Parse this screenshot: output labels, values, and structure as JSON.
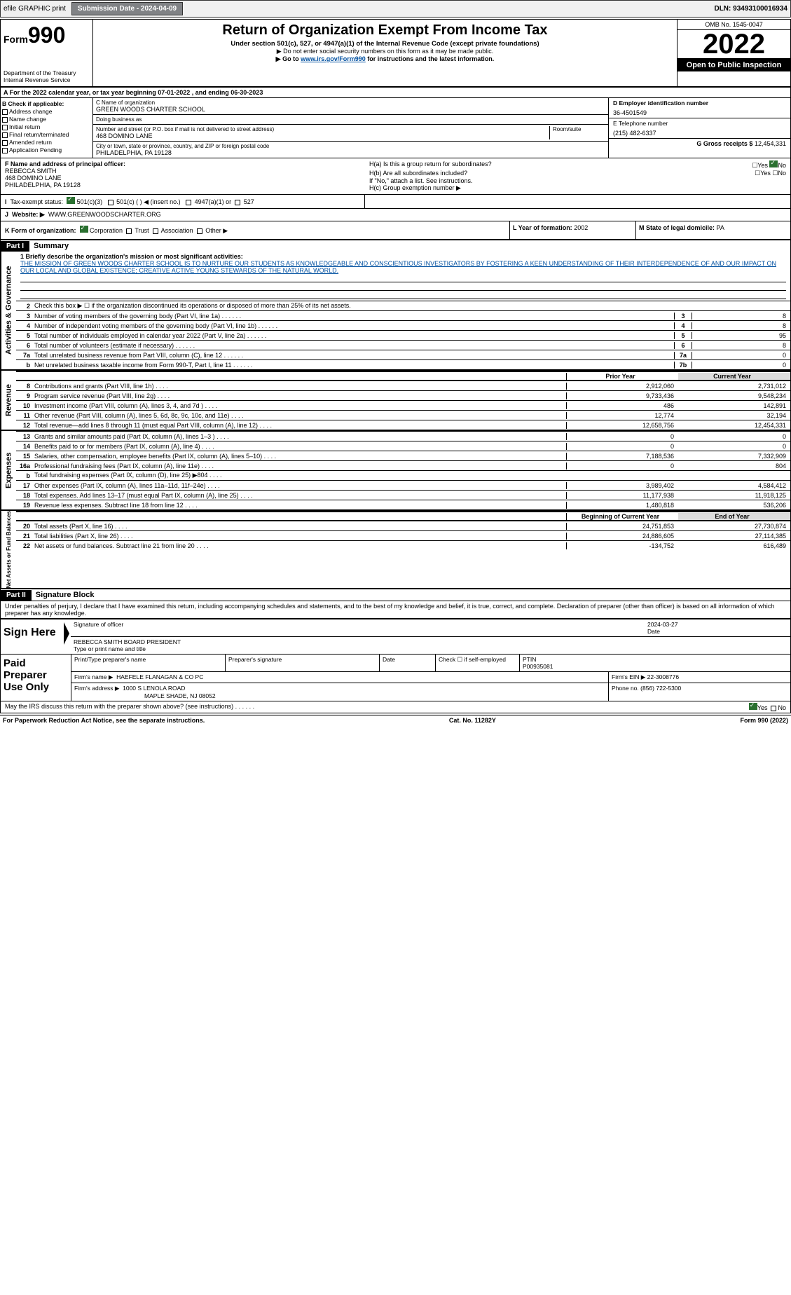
{
  "topbar": {
    "efile": "efile GRAPHIC print",
    "subdate_label": "Submission Date - 2024-04-09",
    "dln": "DLN: 93493100016934"
  },
  "header": {
    "form_label": "Form",
    "form_num": "990",
    "dept": "Department of the Treasury\nInternal Revenue Service",
    "title": "Return of Organization Exempt From Income Tax",
    "sub1": "Under section 501(c), 527, or 4947(a)(1) of the Internal Revenue Code (except private foundations)",
    "sub2": "▶ Do not enter social security numbers on this form as it may be made public.",
    "sub3_pre": "▶ Go to ",
    "sub3_link": "www.irs.gov/Form990",
    "sub3_post": " for instructions and the latest information.",
    "omb": "OMB No. 1545-0047",
    "year": "2022",
    "open": "Open to Public Inspection"
  },
  "rowA": "A For the 2022 calendar year, or tax year beginning 07-01-2022    , and ending 06-30-2023",
  "colB": {
    "hdr": "B Check if applicable:",
    "items": [
      "Address change",
      "Name change",
      "Initial return",
      "Final return/terminated",
      "Amended return",
      "Application Pending"
    ]
  },
  "colC": {
    "name_lbl": "C Name of organization",
    "name": "GREEN WOODS CHARTER SCHOOL",
    "dba_lbl": "Doing business as",
    "dba": "",
    "street_lbl": "Number and street (or P.O. box if mail is not delivered to street address)",
    "room_lbl": "Room/suite",
    "street": "468 DOMINO LANE",
    "city_lbl": "City or town, state or province, country, and ZIP or foreign postal code",
    "city": "PHILADELPHIA, PA  19128"
  },
  "colD": {
    "ein_lbl": "D Employer identification number",
    "ein": "36-4501549",
    "tel_lbl": "E Telephone number",
    "tel": "(215) 482-6337",
    "gross_lbl": "G Gross receipts $",
    "gross": "12,454,331"
  },
  "rowF": {
    "lbl": "F  Name and address of principal officer:",
    "name": "REBECCA SMITH",
    "addr1": "468 DOMINO LANE",
    "addr2": "PHILADELPHIA, PA  19128"
  },
  "rowH": {
    "ha": "H(a)  Is this a group return for subordinates?",
    "hb": "H(b)  Are all subordinates included?",
    "hb2": "If \"No,\" attach a list. See instructions.",
    "hc": "H(c)  Group exemption number ▶",
    "yes": "Yes",
    "no": "No"
  },
  "rowI": {
    "lbl": "Tax-exempt status:",
    "opt1": "501(c)(3)",
    "opt2": "501(c) (   ) ◀ (insert no.)",
    "opt3": "4947(a)(1) or",
    "opt4": "527"
  },
  "rowJ": {
    "lbl": "Website: ▶",
    "val": "WWW.GREENWOODSCHARTER.ORG"
  },
  "rowK": {
    "lbl": "K Form of organization:",
    "corp": "Corporation",
    "trust": "Trust",
    "assoc": "Association",
    "other": "Other ▶"
  },
  "rowL": {
    "lbl": "L Year of formation:",
    "val": "2002"
  },
  "rowM": {
    "lbl": "M State of legal domicile:",
    "val": "PA"
  },
  "part1": {
    "hdr": "Part I",
    "title": "Summary"
  },
  "mission": {
    "lbl": "1  Briefly describe the organization's mission or most significant activities:",
    "text": "THE MISSION OF GREEN WOODS CHARTER SCHOOL IS TO NURTURE OUR STUDENTS AS KNOWLEDGEABLE AND CONSCIENTIOUS INVESTIGATORS BY FOSTERING A KEEN UNDERSTANDING OF THEIR INTERDEPENDENCE OF AND OUR IMPACT ON OUR LOCAL AND GLOBAL EXISTENCE; CREATIVE ACTIVE YOUNG STEWARDS OF THE NATURAL WORLD."
  },
  "sidebar": {
    "s1": "Activities & Governance",
    "s2": "Revenue",
    "s3": "Expenses",
    "s4": "Net Assets or Fund Balances"
  },
  "lines_ag": [
    {
      "n": "2",
      "t": "Check this box ▶ ☐  if the organization discontinued its operations or disposed of more than 25% of its net assets.",
      "box": "",
      "v": ""
    },
    {
      "n": "3",
      "t": "Number of voting members of the governing body (Part VI, line 1a)",
      "box": "3",
      "v": "8"
    },
    {
      "n": "4",
      "t": "Number of independent voting members of the governing body (Part VI, line 1b)",
      "box": "4",
      "v": "8"
    },
    {
      "n": "5",
      "t": "Total number of individuals employed in calendar year 2022 (Part V, line 2a)",
      "box": "5",
      "v": "95"
    },
    {
      "n": "6",
      "t": "Total number of volunteers (estimate if necessary)",
      "box": "6",
      "v": "8"
    },
    {
      "n": "7a",
      "t": "Total unrelated business revenue from Part VIII, column (C), line 12",
      "box": "7a",
      "v": "0"
    },
    {
      "n": "b",
      "t": "Net unrelated business taxable income from Form 990-T, Part I, line 11",
      "box": "7b",
      "v": "0"
    }
  ],
  "colhdrs": {
    "py": "Prior Year",
    "cy": "Current Year",
    "bcy": "Beginning of Current Year",
    "ey": "End of Year"
  },
  "lines_rev": [
    {
      "n": "8",
      "t": "Contributions and grants (Part VIII, line 1h)",
      "v1": "2,912,060",
      "v2": "2,731,012"
    },
    {
      "n": "9",
      "t": "Program service revenue (Part VIII, line 2g)",
      "v1": "9,733,436",
      "v2": "9,548,234"
    },
    {
      "n": "10",
      "t": "Investment income (Part VIII, column (A), lines 3, 4, and 7d )",
      "v1": "486",
      "v2": "142,891"
    },
    {
      "n": "11",
      "t": "Other revenue (Part VIII, column (A), lines 5, 6d, 8c, 9c, 10c, and 11e)",
      "v1": "12,774",
      "v2": "32,194"
    },
    {
      "n": "12",
      "t": "Total revenue—add lines 8 through 11 (must equal Part VIII, column (A), line 12)",
      "v1": "12,658,756",
      "v2": "12,454,331"
    }
  ],
  "lines_exp": [
    {
      "n": "13",
      "t": "Grants and similar amounts paid (Part IX, column (A), lines 1–3 )",
      "v1": "0",
      "v2": "0"
    },
    {
      "n": "14",
      "t": "Benefits paid to or for members (Part IX, column (A), line 4)",
      "v1": "0",
      "v2": "0"
    },
    {
      "n": "15",
      "t": "Salaries, other compensation, employee benefits (Part IX, column (A), lines 5–10)",
      "v1": "7,188,536",
      "v2": "7,332,909"
    },
    {
      "n": "16a",
      "t": "Professional fundraising fees (Part IX, column (A), line 11e)",
      "v1": "0",
      "v2": "804"
    },
    {
      "n": "b",
      "t": "Total fundraising expenses (Part IX, column (D), line 25) ▶804",
      "v1": "",
      "v2": "",
      "grey": true
    },
    {
      "n": "17",
      "t": "Other expenses (Part IX, column (A), lines 11a–11d, 11f–24e)",
      "v1": "3,989,402",
      "v2": "4,584,412"
    },
    {
      "n": "18",
      "t": "Total expenses. Add lines 13–17 (must equal Part IX, column (A), line 25)",
      "v1": "11,177,938",
      "v2": "11,918,125"
    },
    {
      "n": "19",
      "t": "Revenue less expenses. Subtract line 18 from line 12",
      "v1": "1,480,818",
      "v2": "536,206"
    }
  ],
  "lines_na": [
    {
      "n": "20",
      "t": "Total assets (Part X, line 16)",
      "v1": "24,751,853",
      "v2": "27,730,874"
    },
    {
      "n": "21",
      "t": "Total liabilities (Part X, line 26)",
      "v1": "24,886,605",
      "v2": "27,114,385"
    },
    {
      "n": "22",
      "t": "Net assets or fund balances. Subtract line 21 from line 20",
      "v1": "-134,752",
      "v2": "616,489"
    }
  ],
  "part2": {
    "hdr": "Part II",
    "title": "Signature Block"
  },
  "sig_decl": "Under penalties of perjury, I declare that I have examined this return, including accompanying schedules and statements, and to the best of my knowledge and belief, it is true, correct, and complete. Declaration of preparer (other than officer) is based on all information of which preparer has any knowledge.",
  "sign": {
    "here": "Sign Here",
    "sig_lbl": "Signature of officer",
    "date_lbl": "Date",
    "date": "2024-03-27",
    "name": "REBECCA SMITH  BOARD PRESIDENT",
    "name_lbl": "Type or print name and title"
  },
  "paid": {
    "hdr": "Paid Preparer Use Only",
    "r1": {
      "c1": "Print/Type preparer's name",
      "c2": "Preparer's signature",
      "c3": "Date",
      "c4": "Check ☐ if self-employed",
      "c5": "PTIN",
      "ptin": "P00935081"
    },
    "r2": {
      "lbl": "Firm's name    ▶",
      "val": "HAEFELE FLANAGAN & CO PC",
      "ein_lbl": "Firm's EIN ▶",
      "ein": "22-3008776"
    },
    "r3": {
      "lbl": "Firm's address ▶",
      "val": "1000 S LENOLA ROAD",
      "city": "MAPLE SHADE, NJ  08052",
      "ph_lbl": "Phone no.",
      "ph": "(856) 722-5300"
    }
  },
  "discuss": {
    "t": "May the IRS discuss this return with the preparer shown above? (see instructions)",
    "yes": "Yes",
    "no": "No"
  },
  "footer": {
    "l": "For Paperwork Reduction Act Notice, see the separate instructions.",
    "c": "Cat. No. 11282Y",
    "r": "Form 990 (2022)"
  }
}
